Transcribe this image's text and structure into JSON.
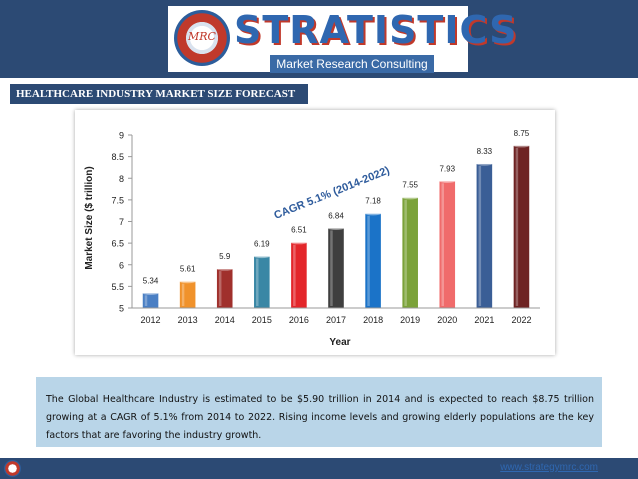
{
  "header": {
    "brand": "STRATISTICS",
    "logo_mark": "MRC",
    "tagline": "Market Research Consulting"
  },
  "banner": {
    "title": "HEALTHCARE INDUSTRY MARKET SIZE FORECAST"
  },
  "chart_data": {
    "type": "bar",
    "categories": [
      "2012",
      "2013",
      "2014",
      "2015",
      "2016",
      "2017",
      "2018",
      "2019",
      "2020",
      "2021",
      "2022"
    ],
    "values": [
      5.34,
      5.61,
      5.9,
      6.19,
      6.51,
      6.84,
      7.18,
      7.55,
      7.93,
      8.33,
      8.75
    ],
    "value_labels": [
      "5.34",
      "5.61",
      "5.9",
      "6.19",
      "6.51",
      "6.84",
      "7.18",
      "7.55",
      "7.93",
      "8.33",
      "8.75"
    ],
    "colors": [
      "#4a7fc4",
      "#f0922b",
      "#a0302c",
      "#3a87a5",
      "#e3262a",
      "#3f3f3f",
      "#1b73c8",
      "#7ba23a",
      "#f06b6b",
      "#3a5e96",
      "#6e2323"
    ],
    "xlabel": "Year",
    "ylabel": "Market Size ($ trillion)",
    "ylim": [
      5,
      9
    ],
    "yticks": [
      "5",
      "5.5",
      "6",
      "6.5",
      "7",
      "7.5",
      "8",
      "8.5",
      "9"
    ],
    "ytick_values": [
      5,
      5.5,
      6,
      6.5,
      7,
      7.5,
      8,
      8.5,
      9
    ],
    "annotation": "CAGR 5.1% (2014-2022)",
    "annotation_color": "#2e5b9c",
    "grid": false
  },
  "description": {
    "text": "The Global Healthcare Industry is estimated to be $5.90 trillion in 2014 and is expected to reach $8.75 trillion growing at a CAGR of 5.1% from 2014 to 2022. Rising income levels and growing elderly populations are the key factors that are favoring the industry growth."
  },
  "footer": {
    "url": "www.strategymrc.com"
  }
}
